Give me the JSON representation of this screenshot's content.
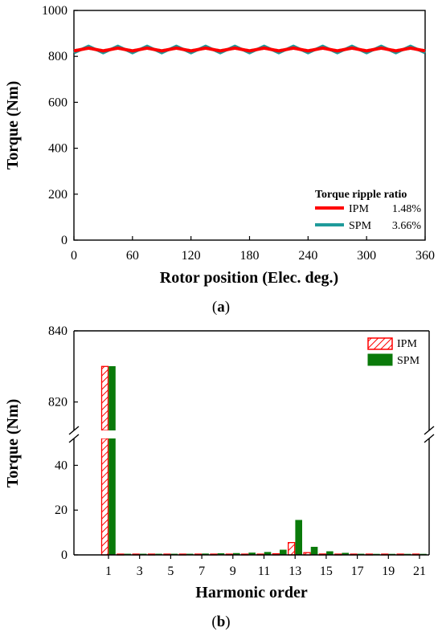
{
  "chart_data": [
    {
      "id": "a",
      "type": "line",
      "caption": {
        "open": "(",
        "letter": "a",
        "close": ")"
      },
      "xlabel": "Rotor position (Elec. deg.)",
      "ylabel": "Torque (Nm)",
      "xlim": [
        0,
        360
      ],
      "ylim": [
        0,
        1000
      ],
      "xticks": [
        0,
        60,
        120,
        180,
        240,
        300,
        360
      ],
      "yticks": [
        0,
        200,
        400,
        600,
        800,
        1000
      ],
      "grid": false,
      "legend": {
        "title": "Torque ripple ratio",
        "position": "bottom-right",
        "entries": [
          {
            "name": "IPM",
            "value": "1.48%"
          },
          {
            "name": "SPM",
            "value": "3.66%"
          }
        ]
      },
      "series": [
        {
          "name": "IPM",
          "color": "#ff0000",
          "mean": 830,
          "amplitude": 6,
          "period_deg": 30,
          "phase_deg": 0
        },
        {
          "name": "SPM",
          "color": "#1f9b9b",
          "mean": 830,
          "amplitude": 15,
          "period_deg": 30,
          "phase_deg": 0
        }
      ]
    },
    {
      "id": "b",
      "type": "bar",
      "caption": {
        "open": "(",
        "letter": "b",
        "close": ")"
      },
      "xlabel": "Harmonic order",
      "ylabel": "Torque (Nm)",
      "y_axis_break": {
        "lower_range": [
          0,
          52
        ],
        "upper_range": [
          812,
          840
        ]
      },
      "yticks_lower": [
        0,
        20,
        40
      ],
      "yticks_upper": [
        820,
        840
      ],
      "xtick_labels": [
        "1",
        "3",
        "5",
        "7",
        "9",
        "11",
        "13",
        "15",
        "17",
        "19",
        "21"
      ],
      "categories": [
        1,
        2,
        3,
        4,
        5,
        6,
        7,
        8,
        9,
        10,
        11,
        12,
        13,
        14,
        15,
        16,
        17,
        18,
        19,
        20,
        21
      ],
      "legend": {
        "position": "top-right"
      },
      "series": [
        {
          "name": "IPM",
          "color": "#ff0000",
          "style": "hatched",
          "values": [
            830,
            0.1,
            0.1,
            0.1,
            0.1,
            0.1,
            0.1,
            0.1,
            0.1,
            0.2,
            0.3,
            0.5,
            5.5,
            1.0,
            0.4,
            0.2,
            0.1,
            0.1,
            0.1,
            0.1,
            0.1
          ]
        },
        {
          "name": "SPM",
          "color": "#0a7a0a",
          "style": "solid",
          "values": [
            830,
            0.4,
            0.4,
            0.4,
            0.4,
            0.4,
            0.5,
            0.6,
            0.7,
            0.9,
            1.2,
            2.2,
            15.5,
            3.5,
            1.5,
            0.8,
            0.4,
            0.3,
            0.3,
            0.3,
            0.3
          ]
        }
      ]
    }
  ]
}
